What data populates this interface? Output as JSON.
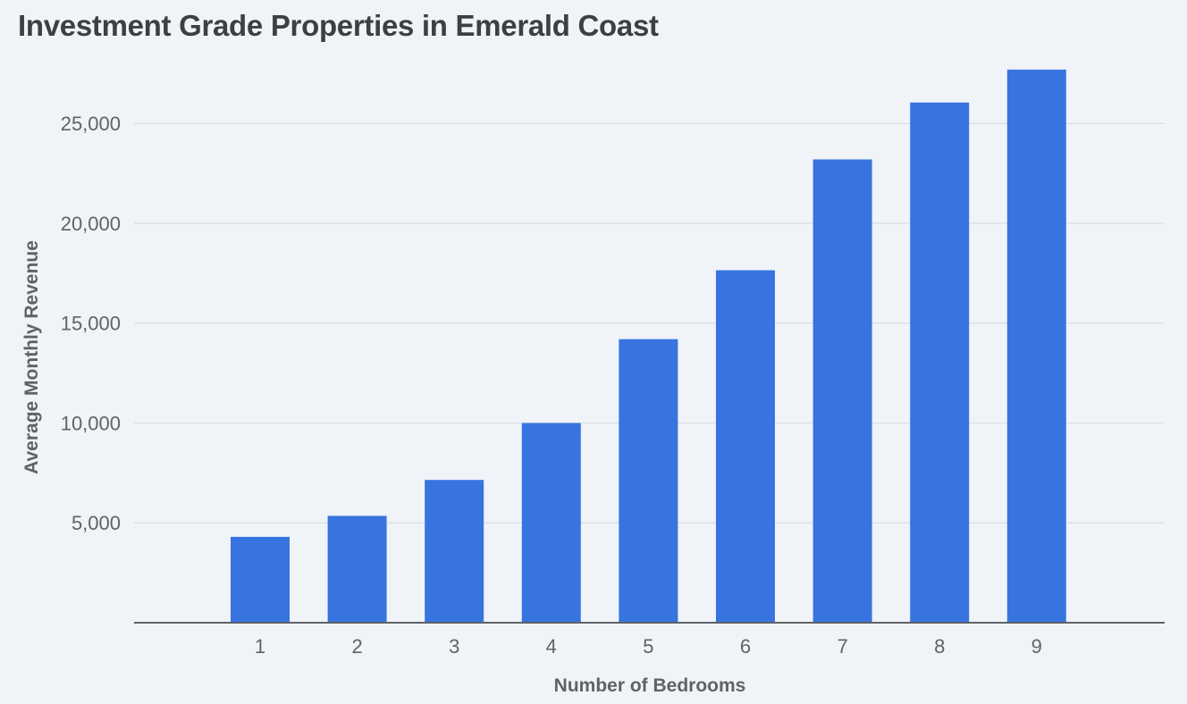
{
  "chart_data": {
    "type": "bar",
    "title": "Investment Grade Properties in Emerald Coast",
    "xlabel": "Number of Bedrooms",
    "ylabel": "Average Monthly Revenue",
    "categories": [
      "1",
      "2",
      "3",
      "4",
      "5",
      "6",
      "7",
      "8",
      "9"
    ],
    "values": [
      4300,
      5350,
      7150,
      10000,
      14200,
      17650,
      23200,
      26050,
      27700
    ],
    "ylim": [
      0,
      28500
    ],
    "yticks": [
      5000,
      10000,
      15000,
      20000,
      25000
    ],
    "ytick_labels": [
      "5,000",
      "10,000",
      "15,000",
      "20,000",
      "25,000"
    ],
    "grid": true,
    "legend": "none",
    "bar_color": "#3874e0",
    "grid_color": "#dde1e6",
    "axis_color": "#5f6368"
  }
}
